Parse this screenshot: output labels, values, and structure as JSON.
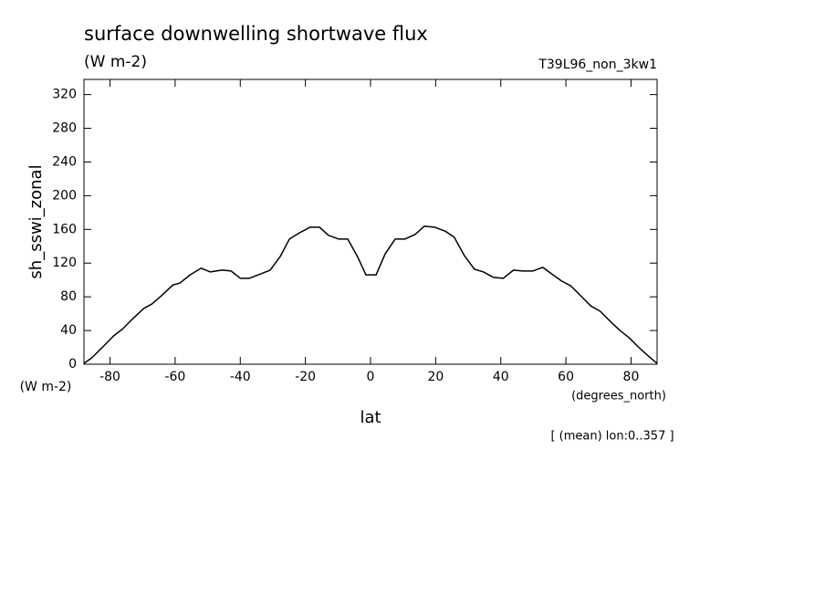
{
  "chart_data": {
    "type": "line",
    "title": "surface downwelling shortwave flux",
    "subtitle": "(W m-2)",
    "dataset": "T39L96_non_3kw1",
    "y_label": "sh_sswi_zonal",
    "y_units": "(W m-2)",
    "x_label": "lat",
    "x_units": "(degrees_north)",
    "annotation": "[ (mean) lon:0..357 ]",
    "color": "#000000",
    "x": [
      -88,
      -85.6,
      -82.2,
      -78.9,
      -76.1,
      -73,
      -69.7,
      -67.1,
      -64,
      -60.7,
      -58.5,
      -55.4,
      -52,
      -49.2,
      -45.6,
      -42.8,
      -40,
      -37.2,
      -33.8,
      -30.8,
      -27.7,
      -24.9,
      -21.8,
      -18.5,
      -15.7,
      -12.9,
      -9.8,
      -7,
      -3.9,
      -1.4,
      1.7,
      4.5,
      7.6,
      10.6,
      13.7,
      16.5,
      19.6,
      22.9,
      25.7,
      28.8,
      31.9,
      34.7,
      37.8,
      40.8,
      43.9,
      46.7,
      49.8,
      52.9,
      55.7,
      58.7,
      61.5,
      64.6,
      67.7,
      70.5,
      73.6,
      76.6,
      79.4,
      82.5,
      85.6,
      88
    ],
    "values": [
      1,
      7.6,
      20.6,
      33.6,
      42,
      54,
      66,
      71.6,
      82,
      94,
      96.5,
      106,
      114,
      109.5,
      111.7,
      110.6,
      102,
      102,
      107,
      111.7,
      128,
      148.6,
      156,
      162.7,
      162.7,
      153,
      148.6,
      148.6,
      127,
      106,
      106,
      131,
      148.6,
      148.6,
      154,
      163.8,
      162.7,
      158,
      150.8,
      129,
      112.8,
      109.5,
      103,
      102,
      111.7,
      110.6,
      110.6,
      115,
      107,
      98.7,
      93,
      81,
      69,
      63,
      51,
      40,
      31.5,
      19.5,
      8.7,
      1
    ],
    "xlim": [
      -88,
      88
    ],
    "ylim": [
      0,
      338
    ],
    "xticks": [
      -80,
      -60,
      -40,
      -20,
      0,
      20,
      40,
      60,
      80
    ],
    "yticks": [
      0,
      40,
      80,
      120,
      160,
      200,
      240,
      280,
      320
    ]
  }
}
